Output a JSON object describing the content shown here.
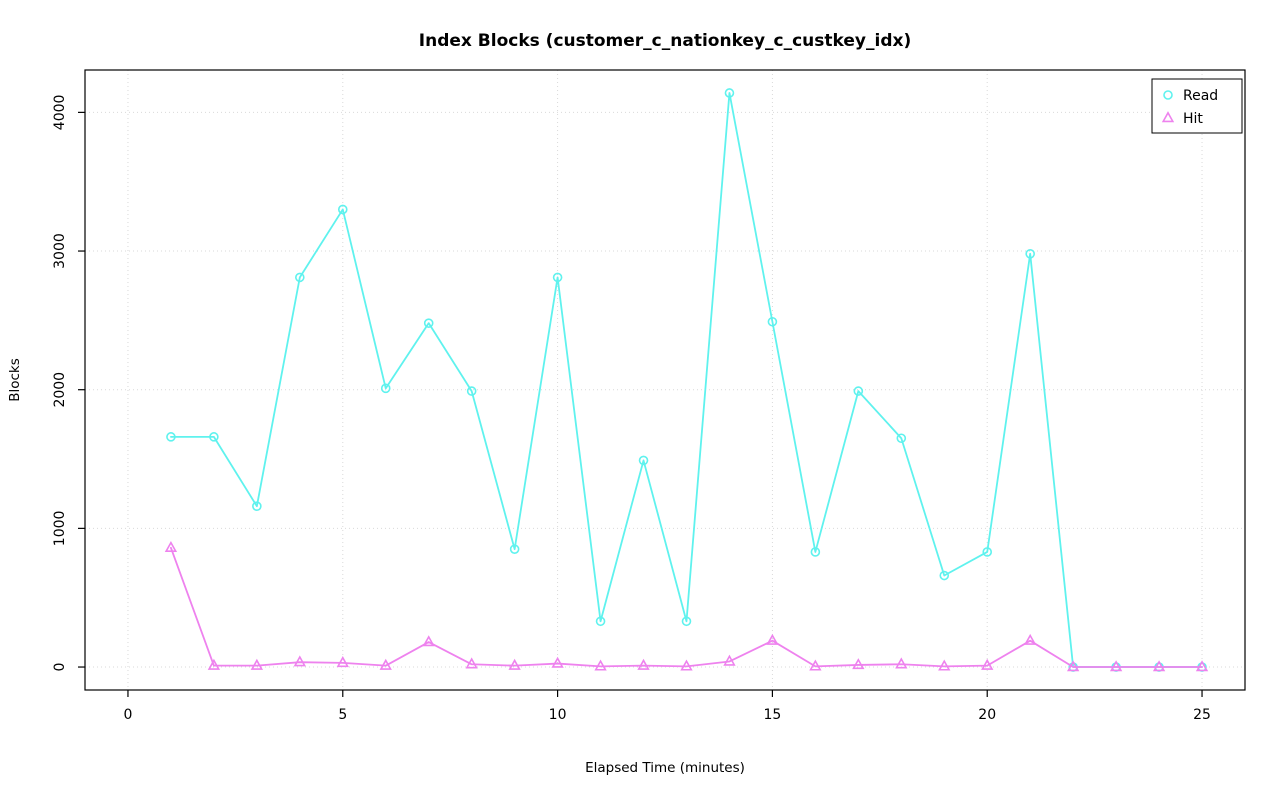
{
  "page": {
    "background": "#FFFFFF"
  },
  "chart_data": {
    "type": "line",
    "title": "Index Blocks (customer_c_nationkey_c_custkey_idx)",
    "xlabel": "Elapsed Time (minutes)",
    "ylabel": "Blocks",
    "x": [
      1,
      2,
      3,
      4,
      5,
      6,
      7,
      8,
      9,
      10,
      11,
      12,
      13,
      14,
      15,
      16,
      17,
      18,
      19,
      20,
      21,
      22,
      23,
      24,
      25
    ],
    "series": [
      {
        "name": "Read",
        "marker": "circle",
        "color": "#5FF2EE",
        "values": [
          1660,
          1660,
          1160,
          2810,
          3300,
          2010,
          2480,
          1990,
          850,
          2810,
          330,
          1490,
          330,
          4140,
          2490,
          830,
          1990,
          1650,
          660,
          830,
          2980,
          0,
          0,
          0,
          0
        ]
      },
      {
        "name": "Hit",
        "marker": "triangle",
        "color": "#EE82EE",
        "values": [
          860,
          10,
          10,
          35,
          30,
          10,
          180,
          20,
          10,
          25,
          5,
          10,
          5,
          40,
          190,
          5,
          15,
          20,
          5,
          10,
          190,
          0,
          0,
          0,
          0
        ]
      }
    ],
    "xticks": [
      0,
      5,
      10,
      15,
      20,
      25
    ],
    "yticks": [
      0,
      1000,
      2000,
      3000,
      4000
    ],
    "xlim": [
      0,
      25
    ],
    "ylim": [
      0,
      4140
    ],
    "grid": true,
    "grid_color": "#D9D9D9",
    "axis_color": "#000000",
    "text_color": "#000000",
    "legend_position": "top-right",
    "legend_labels": [
      "Read",
      "Hit"
    ]
  }
}
